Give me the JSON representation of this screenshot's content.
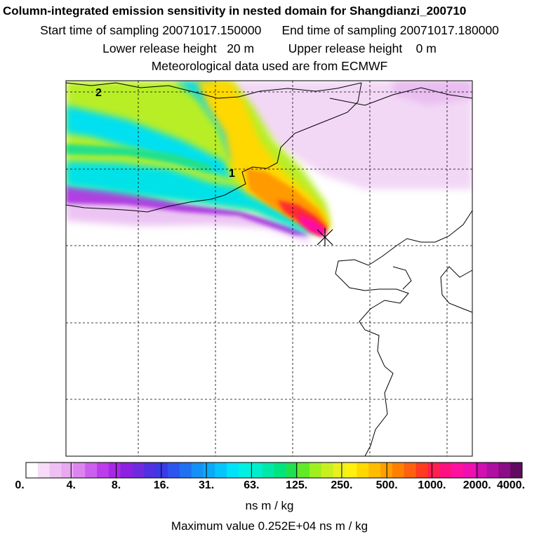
{
  "title": "Column-integrated emission sensitivity in nested domain for Shangdianzi_200710",
  "sampling": {
    "start_label": "Start time of sampling",
    "start": "20071017.150000",
    "end_label": "End time of sampling",
    "end": "20071017.180000"
  },
  "release": {
    "lower_label": "Lower release height",
    "lower": "20 m",
    "upper_label": "Upper release height",
    "upper": "0 m"
  },
  "met_note": "Meteorological data used are from ECMWF",
  "contour_labels": [
    "2",
    "1"
  ],
  "colorbar": {
    "tick_labels": [
      "0.",
      "4.",
      "8.",
      "16.",
      "31.",
      "63.",
      "125.",
      "250.",
      "500.",
      "1000.",
      "2000.",
      "4000."
    ],
    "colors": [
      "#ffffff",
      "#f6dcf7",
      "#efc0f3",
      "#e8a8f2",
      "#dc85f0",
      "#cc60ee",
      "#bc3cec",
      "#a828e6",
      "#8d20e2",
      "#6f2ae0",
      "#5030e0",
      "#3a3ae6",
      "#2b55ee",
      "#1f70f2",
      "#1490f6",
      "#0aaaf8",
      "#05c6fa",
      "#00e2f8",
      "#00f0e4",
      "#00eecc",
      "#00e8a8",
      "#00e480",
      "#20e050",
      "#60ea28",
      "#a0f020",
      "#c8f020",
      "#e8f020",
      "#fff010",
      "#ffd800",
      "#ffbc00",
      "#ffa000",
      "#ff8000",
      "#ff6010",
      "#ff3c20",
      "#ff2050",
      "#ff1080",
      "#ff10a0",
      "#f010b0",
      "#d010b0",
      "#b010a0",
      "#8c0c88",
      "#600a60"
    ],
    "unit": "ns m / kg"
  },
  "max_label": "Maximum value  0.252E+04 ns m / kg",
  "receptor": "Shangdianzi",
  "colors": {
    "frame": "#000000",
    "grid": "#000000",
    "coast": "#000000"
  }
}
